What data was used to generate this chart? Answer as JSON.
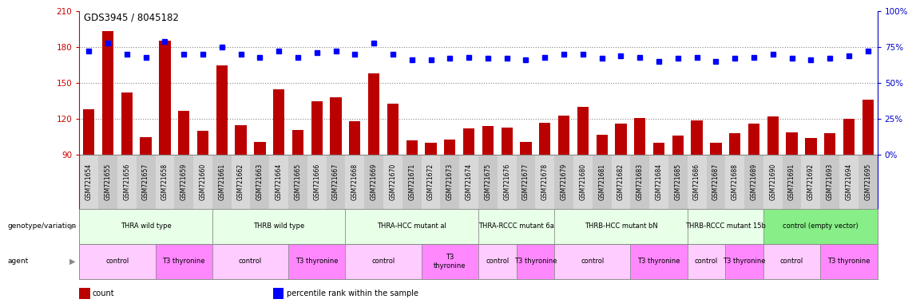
{
  "title": "GDS3945 / 8045182",
  "samples": [
    "GSM721654",
    "GSM721655",
    "GSM721656",
    "GSM721657",
    "GSM721658",
    "GSM721659",
    "GSM721660",
    "GSM721661",
    "GSM721662",
    "GSM721663",
    "GSM721664",
    "GSM721665",
    "GSM721666",
    "GSM721667",
    "GSM721668",
    "GSM721669",
    "GSM721670",
    "GSM721671",
    "GSM721672",
    "GSM721673",
    "GSM721674",
    "GSM721675",
    "GSM721676",
    "GSM721677",
    "GSM721678",
    "GSM721679",
    "GSM721680",
    "GSM721681",
    "GSM721682",
    "GSM721683",
    "GSM721684",
    "GSM721685",
    "GSM721686",
    "GSM721687",
    "GSM721688",
    "GSM721689",
    "GSM721690",
    "GSM721691",
    "GSM721692",
    "GSM721693",
    "GSM721694",
    "GSM721695"
  ],
  "counts": [
    128,
    193,
    142,
    105,
    185,
    127,
    110,
    165,
    115,
    101,
    145,
    111,
    135,
    138,
    118,
    158,
    133,
    102,
    100,
    103,
    112,
    114,
    113,
    101,
    117,
    123,
    130,
    107,
    116,
    121,
    100,
    106,
    119,
    100,
    108,
    116,
    122,
    109,
    104,
    108,
    120,
    136
  ],
  "percentile_ranks": [
    72,
    78,
    70,
    68,
    79,
    70,
    70,
    75,
    70,
    68,
    72,
    68,
    71,
    72,
    70,
    78,
    70,
    66,
    66,
    67,
    68,
    67,
    67,
    66,
    68,
    70,
    70,
    67,
    69,
    68,
    65,
    67,
    68,
    65,
    67,
    68,
    70,
    67,
    66,
    67,
    69,
    72
  ],
  "ylim_left": [
    90,
    210
  ],
  "ylim_right": [
    0,
    100
  ],
  "yticks_left": [
    90,
    120,
    150,
    180,
    210
  ],
  "yticks_right": [
    0,
    25,
    50,
    75,
    100
  ],
  "bar_color": "#bb0000",
  "marker_color": "#0000ff",
  "gridline_color": "#888888",
  "gridlines_at": [
    120,
    150,
    180
  ],
  "genotype_groups": [
    {
      "label": "THRA wild type",
      "start": 0,
      "end": 7,
      "color": "#e8ffe8"
    },
    {
      "label": "THRB wild type",
      "start": 7,
      "end": 14,
      "color": "#e8ffe8"
    },
    {
      "label": "THRA-HCC mutant al",
      "start": 14,
      "end": 21,
      "color": "#e8ffe8"
    },
    {
      "label": "THRA-RCCC mutant 6a",
      "start": 21,
      "end": 25,
      "color": "#e8ffe8"
    },
    {
      "label": "THRB-HCC mutant bN",
      "start": 25,
      "end": 32,
      "color": "#e8ffe8"
    },
    {
      "label": "THRB-RCCC mutant 15b",
      "start": 32,
      "end": 36,
      "color": "#e8ffe8"
    },
    {
      "label": "control (empty vector)",
      "start": 36,
      "end": 42,
      "color": "#88ee88"
    }
  ],
  "agent_groups": [
    {
      "label": "control",
      "start": 0,
      "end": 4,
      "color": "#ffccff"
    },
    {
      "label": "T3 thyronine",
      "start": 4,
      "end": 7,
      "color": "#ff88ff"
    },
    {
      "label": "control",
      "start": 7,
      "end": 11,
      "color": "#ffccff"
    },
    {
      "label": "T3 thyronine",
      "start": 11,
      "end": 14,
      "color": "#ff88ff"
    },
    {
      "label": "control",
      "start": 14,
      "end": 18,
      "color": "#ffccff"
    },
    {
      "label": "T3\nthyronine",
      "start": 18,
      "end": 21,
      "color": "#ff88ff"
    },
    {
      "label": "control",
      "start": 21,
      "end": 23,
      "color": "#ffccff"
    },
    {
      "label": "T3 thyronine",
      "start": 23,
      "end": 25,
      "color": "#ff88ff"
    },
    {
      "label": "control",
      "start": 25,
      "end": 29,
      "color": "#ffccff"
    },
    {
      "label": "T3 thyronine",
      "start": 29,
      "end": 32,
      "color": "#ff88ff"
    },
    {
      "label": "control",
      "start": 32,
      "end": 34,
      "color": "#ffccff"
    },
    {
      "label": "T3 thyronine",
      "start": 34,
      "end": 36,
      "color": "#ff88ff"
    },
    {
      "label": "control",
      "start": 36,
      "end": 39,
      "color": "#ffccff"
    },
    {
      "label": "T3 thyronine",
      "start": 39,
      "end": 42,
      "color": "#ff88ff"
    }
  ],
  "xtick_colors": [
    "#d8d8d8",
    "#c8c8c8"
  ],
  "left_axis_color": "#cc0000",
  "right_axis_color": "#0000cc",
  "title_color": "#000000",
  "bg_color": "#ffffff",
  "legend_items": [
    {
      "label": "count",
      "color": "#bb0000"
    },
    {
      "label": "percentile rank within the sample",
      "color": "#0000ff"
    }
  ]
}
